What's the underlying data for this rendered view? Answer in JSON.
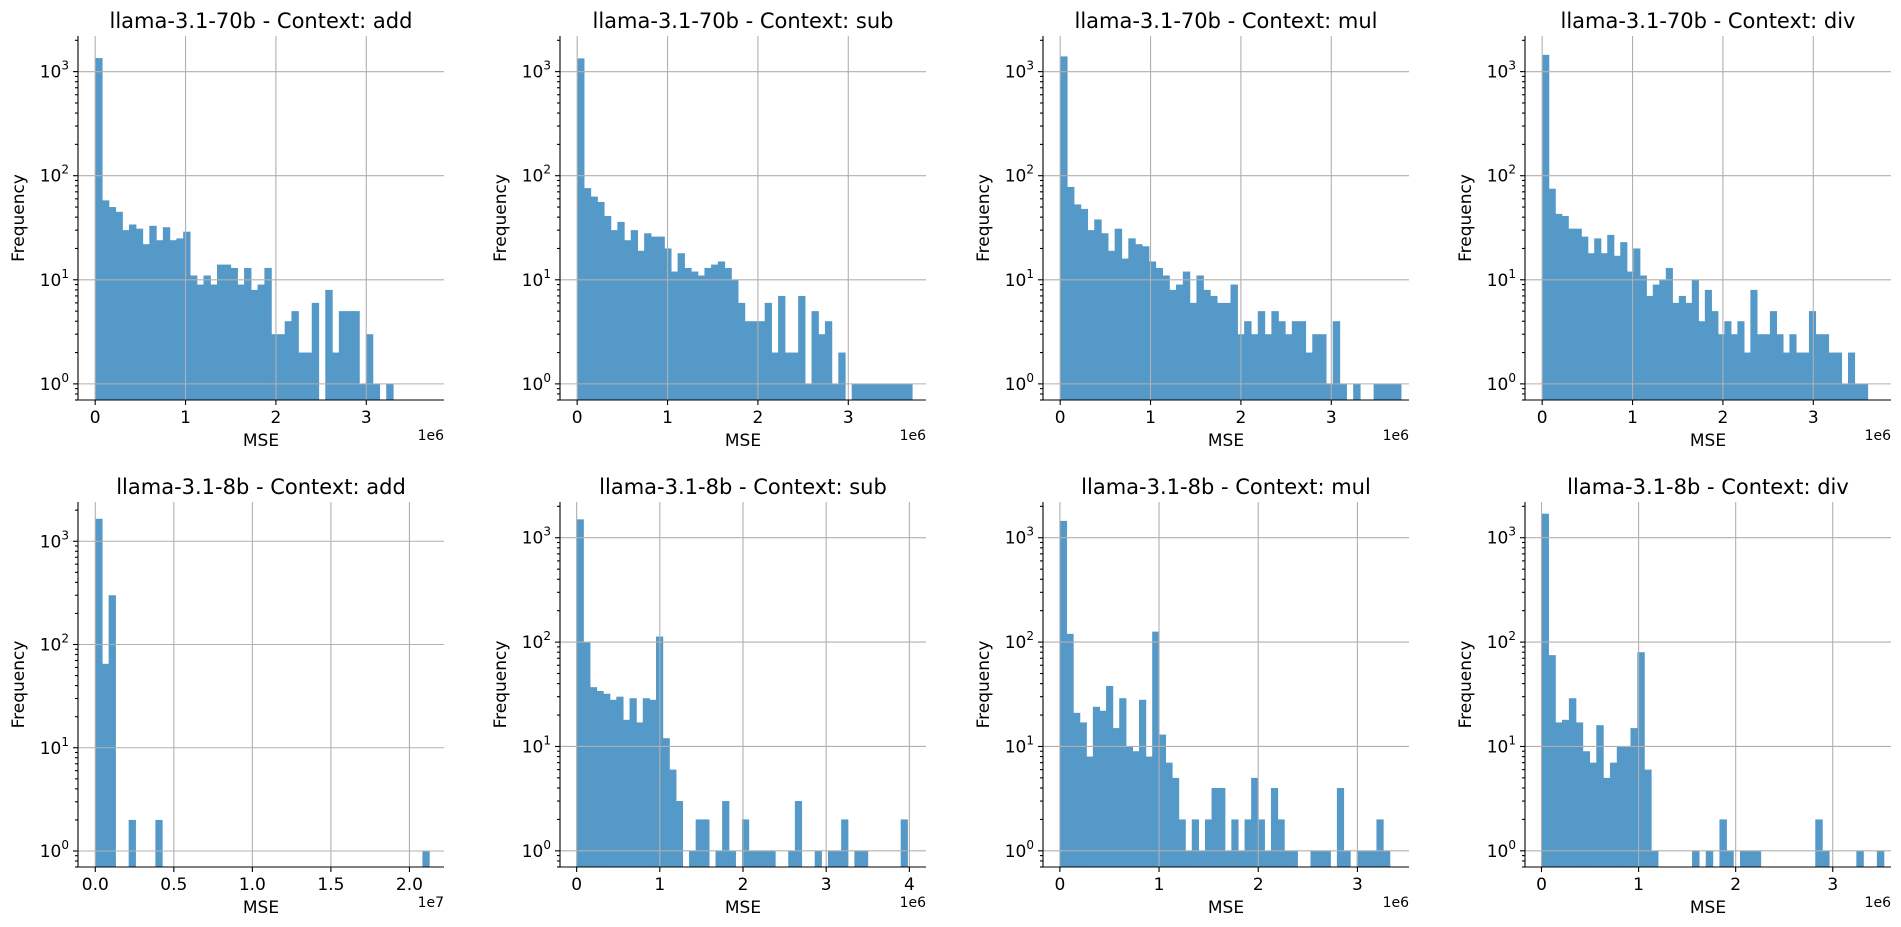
{
  "chart_data": [
    {
      "type": "bar",
      "title": "llama-3.1-70b - Context: add",
      "xlabel": "MSE",
      "ylabel": "Frequency",
      "x_offset": "1e6",
      "yscale": "log",
      "grid": true,
      "xlim": [
        -0.19,
        3.86
      ],
      "ylim": [
        0.7,
        2200
      ],
      "xticks": [
        0,
        1,
        2,
        3
      ],
      "xtick_labels": [
        "0",
        "1",
        "2",
        "3"
      ],
      "bin_width": 0.0749,
      "counts": [
        1350,
        58,
        50,
        45,
        30,
        34,
        31,
        22,
        33,
        24,
        32,
        24,
        25,
        29,
        11,
        9,
        11,
        9,
        14,
        14,
        13,
        9,
        13,
        8,
        9,
        13,
        3,
        3,
        4,
        5,
        2,
        2,
        6,
        0,
        8,
        2,
        5,
        5,
        5,
        1,
        3,
        1,
        0,
        1,
        0,
        0,
        0,
        0,
        0,
        0
      ]
    },
    {
      "type": "bar",
      "title": "llama-3.1-70b - Context: sub",
      "xlabel": "MSE",
      "ylabel": "Frequency",
      "x_offset": "1e6",
      "yscale": "log",
      "grid": true,
      "xlim": [
        -0.19,
        3.86
      ],
      "ylim": [
        0.7,
        2200
      ],
      "xticks": [
        0,
        1,
        2,
        3
      ],
      "xtick_labels": [
        "0",
        "1",
        "2",
        "3"
      ],
      "bin_width": 0.0741,
      "counts": [
        1340,
        76,
        63,
        56,
        41,
        30,
        36,
        24,
        30,
        19,
        28,
        26,
        26,
        20,
        12,
        18,
        13,
        12,
        11,
        13,
        14,
        15,
        13,
        10,
        6,
        4,
        4,
        4,
        6,
        2,
        7,
        2,
        2,
        7,
        1,
        5,
        3,
        4,
        1,
        2,
        0,
        1,
        1,
        1,
        1,
        1,
        1,
        1,
        1,
        1
      ]
    },
    {
      "type": "bar",
      "title": "llama-3.1-70b - Context: mul",
      "xlabel": "MSE",
      "ylabel": "Frequency",
      "x_offset": "1e6",
      "yscale": "log",
      "grid": true,
      "xlim": [
        -0.19,
        3.86
      ],
      "ylim": [
        0.7,
        2200
      ],
      "xticks": [
        0,
        1,
        2,
        3
      ],
      "xtick_labels": [
        "0",
        "1",
        "2",
        "3"
      ],
      "bin_width": 0.0754,
      "counts": [
        1400,
        78,
        53,
        48,
        30,
        38,
        28,
        19,
        31,
        16,
        25,
        22,
        21,
        15,
        13,
        11,
        8,
        9,
        12,
        6,
        11,
        8,
        7,
        6,
        6,
        9,
        3,
        4,
        3,
        5,
        3,
        5,
        4,
        3,
        4,
        4,
        2,
        3,
        3,
        1,
        4,
        1,
        0,
        1,
        0,
        0,
        1,
        1,
        1,
        1
      ]
    },
    {
      "type": "bar",
      "title": "llama-3.1-70b - Context: div",
      "xlabel": "MSE",
      "ylabel": "Frequency",
      "x_offset": "1e6",
      "yscale": "log",
      "grid": true,
      "xlim": [
        -0.19,
        3.86
      ],
      "ylim": [
        0.7,
        2200
      ],
      "xticks": [
        0,
        1,
        2,
        3
      ],
      "xtick_labels": [
        "0",
        "1",
        "2",
        "3"
      ],
      "bin_width": 0.072,
      "counts": [
        1450,
        75,
        43,
        41,
        31,
        31,
        26,
        18,
        25,
        18,
        27,
        17,
        23,
        12,
        20,
        11,
        7,
        9,
        10,
        13,
        6,
        7,
        6,
        10,
        4,
        8,
        5,
        3,
        4,
        3,
        4,
        2,
        8,
        3,
        3,
        5,
        3,
        2,
        3,
        2,
        2,
        5,
        3,
        3,
        2,
        2,
        1,
        2,
        1,
        1
      ]
    },
    {
      "type": "bar",
      "title": "llama-3.1-8b - Context: add",
      "xlabel": "MSE",
      "ylabel": "Frequency",
      "x_offset": "1e7",
      "yscale": "log",
      "grid": true,
      "xlim": [
        -0.11,
        2.22
      ],
      "ylim": [
        0.7,
        2400
      ],
      "xticks": [
        0,
        0.5,
        1.0,
        1.5,
        2.0
      ],
      "xtick_labels": [
        "0.0",
        "0.5",
        "1.0",
        "1.5",
        "2.0"
      ],
      "bin_width": 0.0425,
      "counts": [
        1650,
        65,
        300,
        0,
        0,
        2,
        0,
        0,
        0,
        2,
        0,
        0,
        0,
        0,
        0,
        0,
        0,
        0,
        0,
        0,
        0,
        0,
        0,
        0,
        0,
        0,
        0,
        0,
        0,
        0,
        0,
        0,
        0,
        0,
        0,
        0,
        0,
        0,
        0,
        0,
        0,
        0,
        0,
        0,
        0,
        0,
        0,
        0,
        0,
        1
      ]
    },
    {
      "type": "bar",
      "title": "llama-3.1-8b - Context: sub",
      "xlabel": "MSE",
      "ylabel": "Frequency",
      "x_offset": "1e6",
      "yscale": "log",
      "grid": true,
      "xlim": [
        -0.2,
        4.2
      ],
      "ylim": [
        0.7,
        2200
      ],
      "xticks": [
        0,
        1,
        2,
        3,
        4
      ],
      "xtick_labels": [
        "0",
        "1",
        "2",
        "3",
        "4"
      ],
      "bin_width": 0.0795,
      "counts": [
        1500,
        100,
        37,
        34,
        32,
        28,
        30,
        18,
        29,
        17,
        29,
        28,
        113,
        12,
        6,
        3,
        0,
        1,
        2,
        2,
        0,
        1,
        3,
        1,
        0,
        2,
        1,
        1,
        1,
        1,
        0,
        0,
        1,
        3,
        0,
        0,
        1,
        0,
        1,
        1,
        2,
        0,
        1,
        1,
        0,
        0,
        0,
        0,
        0,
        2
      ]
    },
    {
      "type": "bar",
      "title": "llama-3.1-8b - Context: mul",
      "xlabel": "MSE",
      "ylabel": "Frequency",
      "x_offset": "1e6",
      "yscale": "log",
      "grid": true,
      "xlim": [
        -0.17,
        3.52
      ],
      "ylim": [
        0.7,
        2200
      ],
      "xticks": [
        0,
        1,
        2,
        3
      ],
      "xtick_labels": [
        "0",
        "1",
        "2",
        "3"
      ],
      "bin_width": 0.0665,
      "counts": [
        1450,
        120,
        21,
        17,
        8,
        24,
        22,
        38,
        15,
        29,
        10,
        9,
        28,
        8,
        126,
        13,
        7,
        5,
        2,
        1,
        2,
        1,
        2,
        4,
        4,
        1,
        2,
        1,
        2,
        5,
        2,
        1,
        4,
        2,
        1,
        1,
        0,
        0,
        1,
        1,
        1,
        0,
        4,
        1,
        0,
        1,
        1,
        1,
        2,
        1
      ]
    },
    {
      "type": "bar",
      "title": "llama-3.1-8b - Context: div",
      "xlabel": "MSE",
      "ylabel": "Frequency",
      "x_offset": "1e6",
      "yscale": "log",
      "grid": true,
      "xlim": [
        -0.17,
        3.6
      ],
      "ylim": [
        0.7,
        2200
      ],
      "xticks": [
        0,
        1,
        2,
        3
      ],
      "xtick_labels": [
        "0",
        "1",
        "2",
        "3"
      ],
      "bin_width": 0.0705,
      "counts": [
        1700,
        75,
        17,
        18,
        29,
        17,
        9,
        7,
        16,
        5,
        7,
        10,
        10,
        15,
        80,
        6,
        1,
        0,
        0,
        0,
        0,
        0,
        1,
        0,
        1,
        0,
        2,
        1,
        0,
        1,
        1,
        1,
        0,
        0,
        0,
        0,
        0,
        0,
        0,
        0,
        2,
        1,
        0,
        0,
        0,
        0,
        1,
        0,
        0,
        1
      ]
    }
  ],
  "colors": {
    "bar": "#5499c7",
    "grid": "#b0b0b0",
    "axis": "#000000"
  }
}
